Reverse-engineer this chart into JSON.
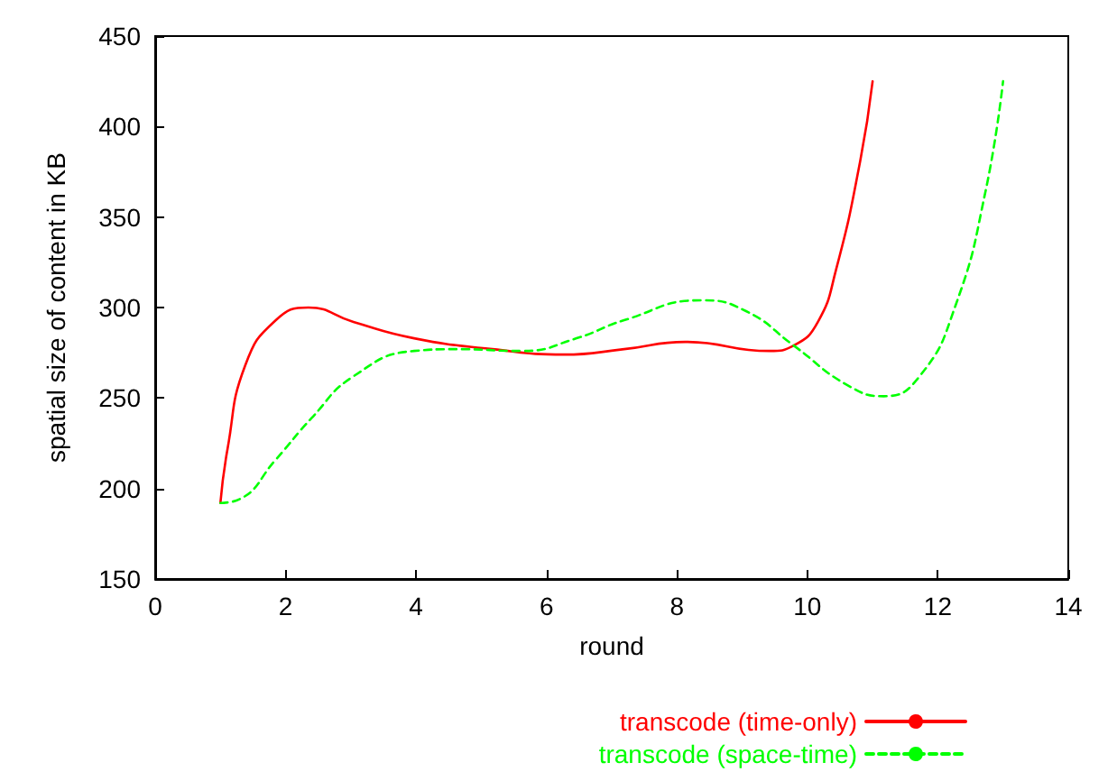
{
  "chart_data": {
    "type": "line",
    "xlabel": "round",
    "ylabel": "spatial size of content in KB",
    "xlim": [
      0,
      14
    ],
    "xticks": [
      0,
      2,
      4,
      6,
      8,
      10,
      12,
      14
    ],
    "ylim": [
      150,
      450
    ],
    "yticks": [
      150,
      200,
      250,
      300,
      350,
      400,
      450
    ],
    "grid": false,
    "legend": "bottom right",
    "marker": "none",
    "series": [
      {
        "name": "transcode (time-only)",
        "color": "#ff0000",
        "line_style": "solid",
        "x": [
          1,
          1.11,
          1.38,
          1.85,
          2.35,
          3.04,
          3.97,
          5.17,
          6.27,
          7.19,
          8.13,
          9.42,
          9.79,
          10.16,
          10.44,
          10.81,
          11
        ],
        "values": [
          192,
          222,
          268,
          293,
          300,
          292,
          283,
          277,
          274,
          277,
          281,
          276,
          279,
          292,
          321,
          381,
          425
        ]
      },
      {
        "name": "transcode (space-time)",
        "color": "#00ff00",
        "line_style": "dashed",
        "x": [
          1,
          1.29,
          1.85,
          2.4,
          3.04,
          3.97,
          4.62,
          5.63,
          6.46,
          7.19,
          8.37,
          9.06,
          9.79,
          10.62,
          11.17,
          11.72,
          12.27,
          12.73,
          13
        ],
        "values": [
          192,
          194,
          216,
          239,
          262,
          276,
          277,
          276,
          283,
          293,
          304,
          298,
          279,
          257,
          251,
          262,
          301,
          364,
          425
        ]
      }
    ]
  }
}
